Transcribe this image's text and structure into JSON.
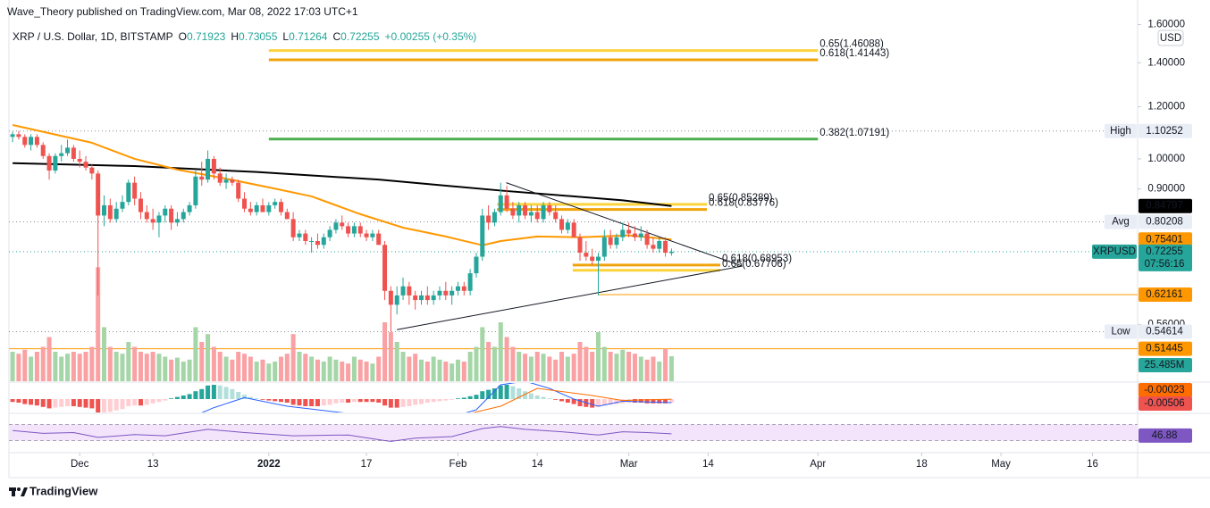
{
  "chart_data": {
    "type": "candlestick",
    "publisher": "Wave_Theory published on TradingView.com, Mar 08, 2022 17:03 UTC+1",
    "title": "XRP / U.S. Dollar, 1D, BITSTAMP",
    "ohlc_letters": [
      "O",
      "H",
      "L",
      "C"
    ],
    "change": "+0.00255 (+0.35%)",
    "currency": "USD",
    "symbol": "XRPUSD",
    "countdown": "07:56:16",
    "brand": "TradingView",
    "log_scale": true,
    "up_color": "#26a69a",
    "down_color": "#ef5350",
    "volume_up_color": "#a5d6a7",
    "volume_down_color": "#faa1a4",
    "xlim": [
      -0.6,
      184.4
    ],
    "xticks": [
      {
        "value": 11,
        "label": "Dec"
      },
      {
        "value": 23,
        "label": "13"
      },
      {
        "value": 42,
        "label": "2022",
        "bold": true
      },
      {
        "value": 58,
        "label": "17"
      },
      {
        "value": 73,
        "label": "Feb"
      },
      {
        "value": 86,
        "label": "14"
      },
      {
        "value": 101,
        "label": "Mar"
      },
      {
        "value": 114,
        "label": "14"
      },
      {
        "value": 132,
        "label": "Apr"
      },
      {
        "value": 149,
        "label": "18"
      },
      {
        "value": 162,
        "label": "May"
      },
      {
        "value": 177,
        "label": "16"
      }
    ],
    "ylim": [
      0.462,
      1.744
    ],
    "yticks": [
      {
        "value": 1.6,
        "label": "1.60000"
      },
      {
        "value": 1.4,
        "label": "1.40000"
      },
      {
        "value": 1.2,
        "label": "1.20000"
      },
      {
        "value": 1.0,
        "label": "1.00000"
      },
      {
        "value": 0.9,
        "label": "0.90000"
      },
      {
        "value": 0.56,
        "label": "0.56000"
      }
    ],
    "open": [
      1.08,
      1.09,
      1.08,
      1.05,
      1.08,
      1.05,
      1.01,
      0.96,
      1.01,
      1.02,
      1.04,
      1.0,
      0.99,
      0.97,
      0.95,
      0.82,
      0.85,
      0.81,
      0.84,
      0.86,
      0.92,
      0.87,
      0.83,
      0.81,
      0.8,
      0.82,
      0.84,
      0.8,
      0.81,
      0.83,
      0.85,
      0.94,
      0.93,
      1.0,
      0.95,
      0.92,
      0.93,
      0.92,
      0.87,
      0.84,
      0.83,
      0.85,
      0.83,
      0.85,
      0.86,
      0.83,
      0.81,
      0.76,
      0.77,
      0.75,
      0.75,
      0.74,
      0.76,
      0.78,
      0.8,
      0.79,
      0.77,
      0.79,
      0.77,
      0.76,
      0.77,
      0.74,
      0.63,
      0.6,
      0.62,
      0.64,
      0.62,
      0.61,
      0.62,
      0.61,
      0.62,
      0.63,
      0.62,
      0.63,
      0.64,
      0.63,
      0.67,
      0.71,
      0.82,
      0.8,
      0.83,
      0.88,
      0.84,
      0.82,
      0.85,
      0.82,
      0.83,
      0.81,
      0.85,
      0.83,
      0.81,
      0.78,
      0.8,
      0.76,
      0.72,
      0.71,
      0.7,
      0.71,
      0.76,
      0.74,
      0.76,
      0.78,
      0.77,
      0.76,
      0.77,
      0.74,
      0.73,
      0.75,
      0.71923
    ],
    "high": [
      1.1,
      1.10252,
      1.09,
      1.09,
      1.09,
      1.06,
      1.02,
      1.02,
      1.05,
      1.07,
      1.05,
      1.03,
      1.01,
      0.98,
      0.96,
      0.88,
      0.87,
      0.86,
      0.88,
      0.93,
      0.94,
      0.89,
      0.85,
      0.84,
      0.83,
      0.85,
      0.85,
      0.83,
      0.84,
      0.86,
      0.96,
      0.99,
      1.03,
      1.01,
      0.97,
      0.95,
      0.94,
      0.93,
      0.89,
      0.86,
      0.86,
      0.87,
      0.86,
      0.87,
      0.87,
      0.84,
      0.83,
      0.78,
      0.78,
      0.76,
      0.77,
      0.77,
      0.79,
      0.81,
      0.82,
      0.8,
      0.8,
      0.8,
      0.78,
      0.78,
      0.78,
      0.75,
      0.64,
      0.64,
      0.66,
      0.65,
      0.63,
      0.63,
      0.64,
      0.63,
      0.64,
      0.65,
      0.64,
      0.65,
      0.65,
      0.68,
      0.72,
      0.84,
      0.85,
      0.84,
      0.92,
      0.91,
      0.86,
      0.86,
      0.86,
      0.85,
      0.85,
      0.86,
      0.86,
      0.85,
      0.82,
      0.81,
      0.81,
      0.77,
      0.75,
      0.73,
      0.72,
      0.78,
      0.78,
      0.77,
      0.8,
      0.8,
      0.79,
      0.79,
      0.78,
      0.76,
      0.76,
      0.76,
      0.73055
    ],
    "low": [
      1.06,
      1.07,
      1.04,
      1.03,
      1.04,
      1.0,
      0.93,
      0.95,
      0.99,
      1.01,
      0.99,
      0.97,
      0.96,
      0.93,
      0.62,
      0.79,
      0.8,
      0.8,
      0.83,
      0.85,
      0.85,
      0.81,
      0.8,
      0.78,
      0.76,
      0.8,
      0.78,
      0.79,
      0.8,
      0.82,
      0.84,
      0.91,
      0.92,
      0.93,
      0.91,
      0.9,
      0.91,
      0.86,
      0.83,
      0.82,
      0.82,
      0.83,
      0.82,
      0.84,
      0.82,
      0.81,
      0.75,
      0.75,
      0.74,
      0.72,
      0.73,
      0.73,
      0.75,
      0.77,
      0.78,
      0.76,
      0.76,
      0.76,
      0.75,
      0.75,
      0.74,
      0.61,
      0.54614,
      0.58,
      0.61,
      0.6,
      0.59,
      0.6,
      0.6,
      0.6,
      0.61,
      0.61,
      0.6,
      0.62,
      0.62,
      0.62,
      0.66,
      0.7,
      0.78,
      0.79,
      0.82,
      0.83,
      0.81,
      0.8,
      0.81,
      0.8,
      0.8,
      0.8,
      0.82,
      0.8,
      0.77,
      0.77,
      0.76,
      0.7,
      0.7,
      0.69,
      0.62,
      0.7,
      0.73,
      0.73,
      0.75,
      0.76,
      0.75,
      0.75,
      0.73,
      0.72,
      0.72,
      0.71,
      0.71264
    ],
    "close": [
      1.09,
      1.08,
      1.05,
      1.08,
      1.05,
      1.01,
      0.96,
      1.01,
      1.02,
      1.04,
      1.0,
      0.99,
      0.97,
      0.95,
      0.82,
      0.85,
      0.81,
      0.84,
      0.86,
      0.92,
      0.87,
      0.83,
      0.81,
      0.8,
      0.82,
      0.84,
      0.8,
      0.81,
      0.83,
      0.85,
      0.94,
      0.93,
      1.0,
      0.95,
      0.92,
      0.93,
      0.92,
      0.87,
      0.84,
      0.83,
      0.85,
      0.83,
      0.85,
      0.86,
      0.83,
      0.81,
      0.76,
      0.77,
      0.75,
      0.75,
      0.74,
      0.76,
      0.78,
      0.8,
      0.79,
      0.77,
      0.79,
      0.77,
      0.76,
      0.77,
      0.74,
      0.63,
      0.6,
      0.62,
      0.64,
      0.62,
      0.61,
      0.62,
      0.61,
      0.62,
      0.63,
      0.62,
      0.63,
      0.64,
      0.63,
      0.67,
      0.71,
      0.82,
      0.8,
      0.83,
      0.88,
      0.84,
      0.82,
      0.85,
      0.82,
      0.83,
      0.81,
      0.85,
      0.83,
      0.81,
      0.78,
      0.8,
      0.76,
      0.72,
      0.71,
      0.7,
      0.71,
      0.76,
      0.74,
      0.76,
      0.78,
      0.77,
      0.76,
      0.77,
      0.74,
      0.73,
      0.75,
      0.72,
      0.72255
    ],
    "volume": [
      30,
      28,
      32,
      25,
      30,
      35,
      45,
      30,
      25,
      28,
      30,
      28,
      30,
      35,
      116,
      55,
      35,
      30,
      28,
      40,
      35,
      30,
      28,
      30,
      28,
      25,
      22,
      24,
      20,
      22,
      55,
      40,
      48,
      35,
      30,
      25,
      22,
      30,
      28,
      25,
      20,
      22,
      18,
      20,
      25,
      28,
      48,
      30,
      28,
      25,
      22,
      20,
      25,
      22,
      20,
      18,
      25,
      22,
      20,
      18,
      25,
      60,
      50,
      40,
      30,
      25,
      28,
      22,
      20,
      25,
      22,
      20,
      18,
      22,
      20,
      30,
      35,
      55,
      40,
      35,
      60,
      45,
      35,
      30,
      28,
      25,
      30,
      28,
      25,
      22,
      30,
      25,
      28,
      40,
      35,
      30,
      50,
      35,
      30,
      28,
      32,
      30,
      28,
      25,
      22,
      25,
      20,
      33,
      25.485
    ],
    "volume_value_label": "25.485M",
    "stats": [
      {
        "label": "High",
        "value": 1.10252
      },
      {
        "label": "Avg",
        "value": 0.80208
      },
      {
        "label": "Low",
        "value": 0.54614
      }
    ],
    "ma": [
      {
        "color": "#000000",
        "x": [
          0,
          20,
          40,
          60,
          80,
          100,
          108
        ],
        "values": [
          0.985,
          0.975,
          0.955,
          0.93,
          0.895,
          0.865,
          0.84797
        ]
      },
      {
        "color": "#ff9800",
        "x": [
          0,
          13,
          20,
          27,
          35,
          42,
          49,
          57,
          64,
          71,
          77,
          80,
          86,
          93,
          101,
          108
        ],
        "values": [
          1.126,
          1.058,
          1.0,
          0.963,
          0.933,
          0.905,
          0.877,
          0.824,
          0.786,
          0.762,
          0.739,
          0.75,
          0.762,
          0.76,
          0.765,
          0.75401
        ]
      }
    ],
    "hlines": [
      {
        "value": 0.62161,
        "x0": 96,
        "color": "#ff9800"
      },
      {
        "value": 0.51445,
        "color": "#ff9800"
      }
    ],
    "fibs": [
      {
        "label": "0.65(1.46088)",
        "value": 1.46088,
        "x": [
          42,
          132
        ],
        "color": "#fbd33c"
      },
      {
        "label": "0.618(1.41443)",
        "value": 1.41443,
        "x": [
          42,
          132
        ],
        "color": "#f0a30a"
      },
      {
        "label": "0.382(1.07191)",
        "value": 1.07191,
        "x": [
          42,
          132
        ],
        "color": "#4caf50"
      },
      {
        "label": "0.65(0.85289)",
        "value": 0.85289,
        "x": [
          79.4,
          113.8
        ],
        "color": "#fbd33c"
      },
      {
        "label": "0.618(0.83776)",
        "value": 0.83776,
        "x": [
          79.4,
          113.8
        ],
        "color": "#f0a30a"
      },
      {
        "label": "0.618(0.68953)",
        "value": 0.68953,
        "x": [
          91.8,
          116
        ],
        "color": "#f0a30a"
      },
      {
        "label": "0.65(0.67706)",
        "value": 0.67706,
        "x": [
          91.8,
          116
        ],
        "color": "#fbd33c"
      }
    ],
    "trendlines": [
      {
        "x": [
          80.9,
          119.6
        ],
        "values": [
          0.92,
          0.687
        ]
      },
      {
        "x": [
          63,
          119.6
        ],
        "values": [
          0.55,
          0.687
        ]
      }
    ],
    "macd": {
      "hist": [
        -0.004,
        -0.005,
        -0.007,
        -0.008,
        -0.009,
        -0.011,
        -0.013,
        -0.012,
        -0.011,
        -0.01,
        -0.01,
        -0.011,
        -0.012,
        -0.013,
        -0.02,
        -0.019,
        -0.018,
        -0.016,
        -0.014,
        -0.01,
        -0.009,
        -0.009,
        -0.008,
        -0.006,
        -0.004,
        -0.002,
        0.001,
        0.003,
        0.005,
        0.007,
        0.011,
        0.014,
        0.019,
        0.02,
        0.019,
        0.017,
        0.014,
        0.01,
        0.006,
        0.003,
        0.001,
        -0.001,
        -0.002,
        -0.003,
        -0.004,
        -0.005,
        -0.008,
        -0.009,
        -0.01,
        -0.01,
        -0.01,
        -0.009,
        -0.008,
        -0.006,
        -0.005,
        -0.005,
        -0.004,
        -0.004,
        -0.004,
        -0.004,
        -0.005,
        -0.009,
        -0.012,
        -0.012,
        -0.011,
        -0.01,
        -0.008,
        -0.007,
        -0.005,
        -0.004,
        -0.003,
        -0.002,
        -0.001,
        0.001,
        0.002,
        0.004,
        0.006,
        0.011,
        0.013,
        0.015,
        0.019,
        0.02,
        0.018,
        0.015,
        0.011,
        0.008,
        0.005,
        0.003,
        0.001,
        -0.001,
        -0.003,
        -0.005,
        -0.007,
        -0.01,
        -0.011,
        -0.012,
        -0.011,
        -0.009,
        -0.008,
        -0.007,
        -0.006,
        -0.005,
        -0.005,
        -0.005,
        -0.006,
        -0.006,
        -0.006,
        -0.006,
        -0.00506
      ],
      "line": {
        "color": "#2962ff",
        "x": [
          20,
          28,
          33,
          38,
          45,
          55,
          62,
          70,
          76,
          80,
          84,
          88,
          92,
          96,
          100,
          104,
          108
        ],
        "values": [
          -0.04,
          -0.03,
          -0.012,
          0.002,
          -0.01,
          -0.02,
          -0.035,
          -0.03,
          -0.015,
          0.02,
          0.025,
          0.015,
          0.0,
          -0.01,
          -0.003,
          -0.004,
          -0.005
        ]
      },
      "signal": {
        "color": "#ff6d00",
        "x": [
          36,
          50,
          70,
          80,
          86,
          95,
          100,
          108
        ],
        "values": [
          -0.03,
          -0.02,
          -0.03,
          -0.01,
          0.015,
          0.005,
          -0.002,
          -0.00023
        ]
      }
    },
    "rsi": {
      "color": "#7e57c2",
      "band": [
        30,
        70
      ],
      "x": [
        0,
        5,
        10,
        14,
        20,
        25,
        32,
        38,
        46,
        55,
        61,
        62,
        66,
        72,
        77,
        80,
        84,
        90,
        96,
        100,
        104,
        108
      ],
      "values": [
        55,
        48,
        50,
        38,
        45,
        42,
        58,
        50,
        42,
        44,
        30,
        28,
        36,
        40,
        60,
        65,
        58,
        52,
        44,
        52,
        50,
        46.88
      ]
    }
  }
}
